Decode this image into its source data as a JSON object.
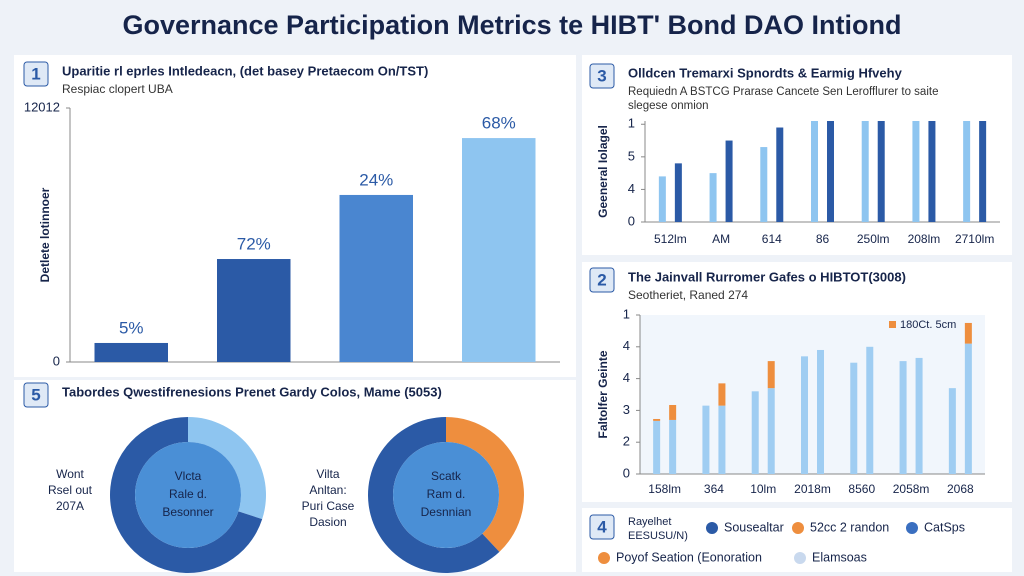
{
  "title": "Governance Participation Metrics te HIBT' Bond DAO Intiond",
  "chart_data": [
    {
      "type": "bar",
      "badge": "1",
      "title": "Uparitie rl eprles Intledeacn, (det basey Pretaecom On/TST)",
      "subtitle": "Respiac clopert UBA",
      "ylabel": "Detlete lotinnoer",
      "categories": [
        null,
        null,
        null,
        null
      ],
      "values": [
        900,
        4870,
        7900,
        10590
      ],
      "annotations": [
        "5%",
        "72%",
        "24%",
        "68%"
      ],
      "colors": [
        "#2b5aa6",
        "#2b5aa6",
        "#4a86d0",
        "#8ec5f0"
      ],
      "ylim": [
        0,
        12012
      ],
      "yticks": [
        0,
        12012
      ]
    },
    {
      "type": "grouped_bar",
      "badge": "3",
      "title": "Olldcen Tremarxi Spnordts & Earmig Hfvehy",
      "subtitle": [
        "Requiedn A BSTCG Prarase Cancete Sen Lerofflurer to saite",
        "slegese onmion"
      ],
      "ylabel": "Geeneral Iolagel",
      "categories": [
        "512lm",
        "AM",
        "614",
        "86",
        "250lm",
        "208lm",
        "2710lm"
      ],
      "series": [
        {
          "color": "#8ec5f0",
          "values": [
            1.4,
            1.5,
            2.3,
            3.1,
            3.1,
            3.1,
            3.1
          ]
        },
        {
          "color": "#2b5aa6",
          "values": [
            1.8,
            2.5,
            2.9,
            3.1,
            3.1,
            3.1,
            3.1
          ]
        }
      ],
      "ylim": [
        0,
        3.1
      ],
      "yticks": [
        0,
        {
          "value": 1,
          "label": "4"
        },
        {
          "value": 2,
          "label": "5"
        },
        {
          "value": 3,
          "label": "1"
        }
      ]
    },
    {
      "type": "stacked_bar",
      "badge": "2",
      "title": "The Jainvall Rurromer Gafes o HIBTOT(3008)",
      "subtitle": "Seotheriet, Raned 274",
      "ylabel": "Faltolfer Geinte",
      "categories": [
        "158lm",
        null,
        "364",
        null,
        "10lm",
        null,
        "2018m",
        null,
        "8560",
        null,
        "2058m",
        null,
        "2068",
        null
      ],
      "series": [
        {
          "color": "#9fcdf2",
          "values": [
            1.67,
            1.7,
            2.15,
            2.15,
            2.6,
            2.7,
            3.7,
            3.9,
            3.5,
            4.0,
            3.55,
            3.65,
            2.7,
            4.1
          ]
        },
        {
          "name": "180Ct. 5cm",
          "color": "#ee8e3e",
          "values": [
            0.06,
            0.47,
            0,
            0.7,
            0,
            0.85,
            0,
            0,
            0,
            0,
            0,
            0,
            0,
            0.65
          ]
        }
      ],
      "ylim": [
        0,
        5
      ],
      "yticks": [
        0,
        {
          "value": 1,
          "label": "2"
        },
        {
          "value": 2,
          "label": "3"
        },
        {
          "value": 3,
          "label": "4"
        },
        {
          "value": 4,
          "label": "4"
        },
        {
          "value": 5,
          "label": "1"
        }
      ]
    },
    {
      "type": "pie",
      "badge": "5",
      "title": "Tabordes Qwestifrenesions Prenet Gardy Colos, Mame (5053)",
      "values": [
        30,
        70
      ],
      "colors": [
        "#8ec5f0",
        "#2b5aa6"
      ],
      "center_text": [
        "Vlcta",
        "Rale d.",
        "Besonner"
      ],
      "side_text": [
        "Wont",
        "Rsel out",
        "207A"
      ]
    },
    {
      "type": "pie",
      "values": [
        38,
        62
      ],
      "colors": [
        "#ee8e3e",
        "#2b5aa6"
      ],
      "center_text": [
        "Scatk",
        "Ram d.",
        "Desnnian"
      ],
      "side_text": [
        "Vilta",
        "Anltan:",
        "Puri Case",
        "Dasion"
      ]
    }
  ],
  "footer": {
    "badge": "4",
    "title": [
      "Rayelhet",
      "EESUSU/N)"
    ],
    "items": [
      {
        "label": "Sousealtar",
        "color": "#2b5aa6"
      },
      {
        "label": "52cc 2 randon",
        "color": "#ee8e3e"
      },
      {
        "label": "CatSps",
        "color": "#3a6fc0"
      },
      {
        "label": "Poyof Seation (Eonoration",
        "color": "#ee8e3e"
      },
      {
        "label": "Elamsoas",
        "color": "#c9d9ee"
      }
    ]
  }
}
